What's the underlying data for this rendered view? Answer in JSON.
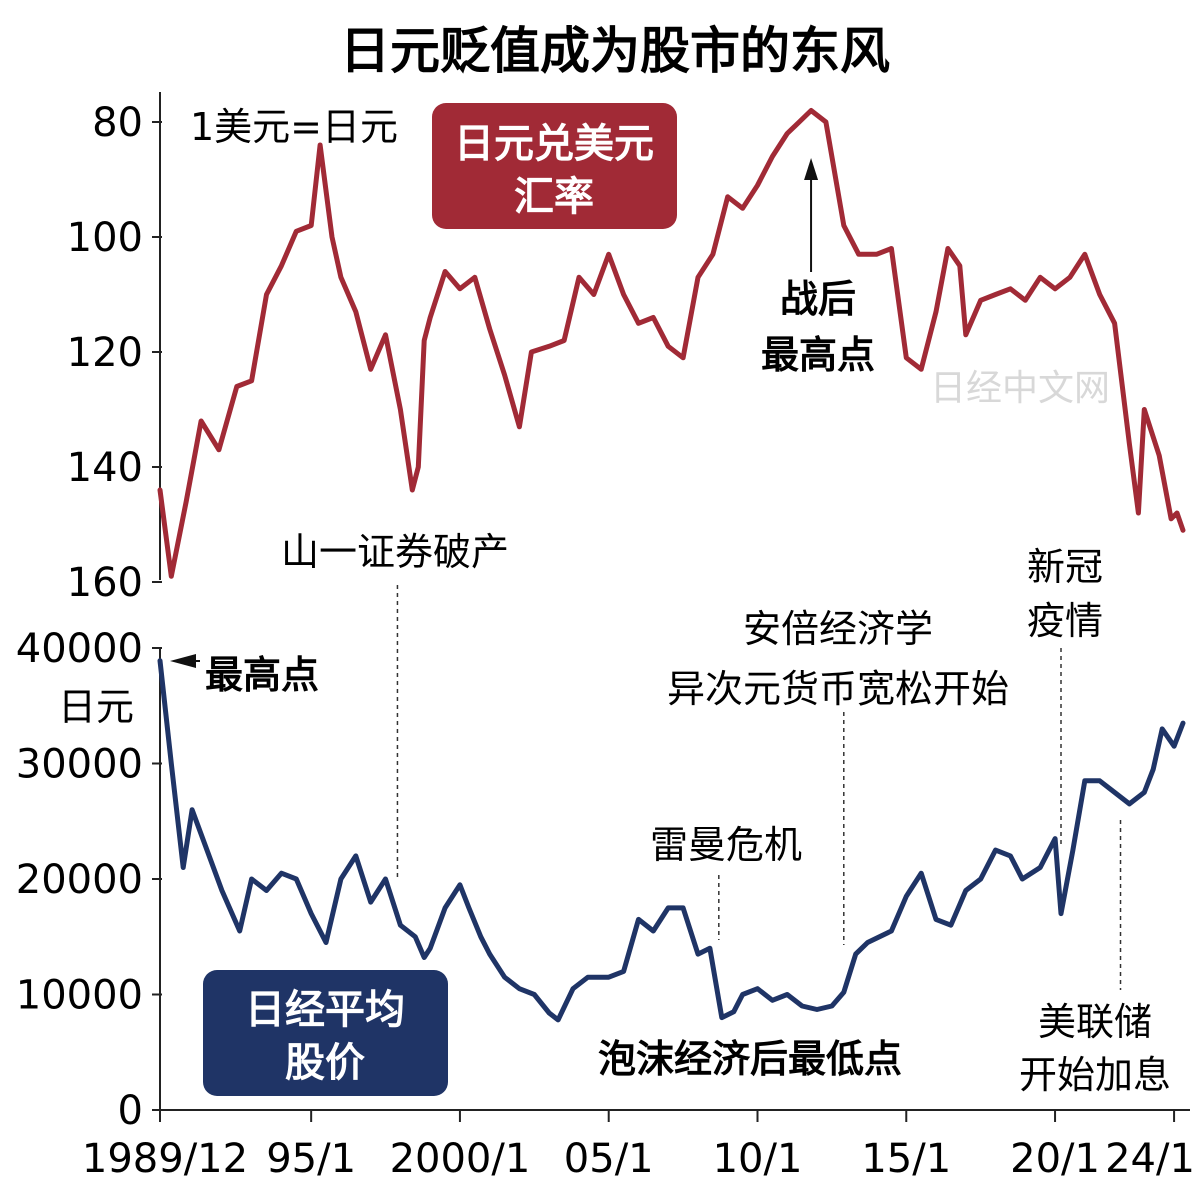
{
  "chart_data": {
    "title": "日元贬值成为股市的东风",
    "x_ticks": [
      "1989/12",
      "95/1",
      "2000/1",
      "05/1",
      "10/1",
      "15/1",
      "20/1",
      "24/1"
    ],
    "watermark": "日经中文网",
    "fx": {
      "type": "line",
      "name": "日元兑美元汇率",
      "name_lines": [
        "日元兑美元",
        "汇率"
      ],
      "unit_label": "1美元=日元",
      "inverted": true,
      "ylim": [
        160,
        77
      ],
      "y_ticks": [
        "80",
        "100",
        "120",
        "140",
        "160"
      ],
      "color": "#a12a36",
      "x": [
        1989.92,
        1990.3,
        1990.8,
        1991.3,
        1991.9,
        1992.5,
        1993.0,
        1993.5,
        1994.0,
        1994.5,
        1995.0,
        1995.3,
        1995.7,
        1996.0,
        1996.5,
        1997.0,
        1997.5,
        1998.0,
        1998.4,
        1998.6,
        1998.8,
        1999.0,
        1999.5,
        2000.0,
        2000.5,
        2001.0,
        2001.5,
        2002.0,
        2002.4,
        2003.0,
        2003.5,
        2004.0,
        2004.5,
        2005.0,
        2005.5,
        2006.0,
        2006.5,
        2007.0,
        2007.5,
        2008.0,
        2008.5,
        2009.0,
        2009.5,
        2010.0,
        2010.5,
        2011.0,
        2011.4,
        2011.8,
        2012.3,
        2012.9,
        2013.4,
        2014.0,
        2014.5,
        2015.0,
        2015.5,
        2016.0,
        2016.4,
        2016.8,
        2017.0,
        2017.5,
        2018.0,
        2018.5,
        2019.0,
        2019.5,
        2020.0,
        2020.5,
        2021.0,
        2021.5,
        2022.0,
        2022.5,
        2022.8,
        2023.0,
        2023.5,
        2023.9,
        2024.1,
        2024.3
      ],
      "values": [
        144,
        159,
        146,
        132,
        137,
        126,
        125,
        110,
        105,
        99,
        98,
        84,
        100,
        107,
        113,
        123,
        117,
        130,
        144,
        140,
        118,
        114,
        106,
        109,
        107,
        116,
        124,
        133,
        120,
        119,
        118,
        107,
        110,
        103,
        110,
        115,
        114,
        119,
        121,
        107,
        103,
        93,
        95,
        91,
        86,
        82,
        80,
        78,
        80,
        98,
        103,
        103,
        102,
        121,
        123,
        113,
        102,
        105,
        117,
        111,
        110,
        109,
        111,
        107,
        109,
        107,
        103,
        110,
        115,
        136,
        148,
        130,
        138,
        149,
        148,
        151
      ]
    },
    "nikkei": {
      "type": "line",
      "name": "日经平均股价",
      "name_lines": [
        "日经平均",
        "股价"
      ],
      "unit_label": "日元",
      "ylim": [
        0,
        40000
      ],
      "y_ticks": [
        "40000",
        "30000",
        "20000",
        "10000",
        "0"
      ],
      "color": "#1f3466",
      "x": [
        1989.92,
        1990.3,
        1990.7,
        1991.0,
        1991.5,
        1992.0,
        1992.6,
        1993.0,
        1993.5,
        1994.0,
        1994.5,
        1995.0,
        1995.5,
        1996.0,
        1996.5,
        1997.0,
        1997.5,
        1998.0,
        1998.5,
        1998.8,
        1999.0,
        1999.5,
        2000.0,
        2000.3,
        2000.7,
        2001.0,
        2001.5,
        2002.0,
        2002.5,
        2003.0,
        2003.3,
        2003.8,
        2004.3,
        2005.0,
        2005.5,
        2006.0,
        2006.5,
        2007.0,
        2007.5,
        2008.0,
        2008.4,
        2008.8,
        2009.2,
        2009.5,
        2010.0,
        2010.5,
        2011.0,
        2011.5,
        2012.0,
        2012.5,
        2012.9,
        2013.3,
        2013.7,
        2014.5,
        2015.0,
        2015.5,
        2016.0,
        2016.5,
        2017.0,
        2017.5,
        2018.0,
        2018.5,
        2018.9,
        2019.5,
        2020.0,
        2020.2,
        2020.6,
        2021.0,
        2021.5,
        2022.0,
        2022.5,
        2023.0,
        2023.3,
        2023.6,
        2024.0,
        2024.3
      ],
      "values": [
        38900,
        30000,
        21000,
        26000,
        22500,
        19000,
        15500,
        20000,
        19000,
        20500,
        20000,
        17000,
        14500,
        20000,
        22000,
        18000,
        20000,
        16000,
        15000,
        13200,
        14000,
        17500,
        19500,
        17500,
        15000,
        13500,
        11500,
        10500,
        10000,
        8400,
        7800,
        10500,
        11500,
        11500,
        12000,
        16500,
        15500,
        17500,
        17500,
        13500,
        14000,
        8000,
        8500,
        10000,
        10500,
        9500,
        10000,
        9000,
        8700,
        9000,
        10200,
        13500,
        14500,
        15500,
        18500,
        20500,
        16500,
        16000,
        19000,
        20000,
        22500,
        22000,
        20000,
        21000,
        23500,
        17000,
        22500,
        28500,
        28500,
        27500,
        26500,
        27500,
        29500,
        33000,
        31500,
        33500
      ]
    },
    "annotations": {
      "yamaichi": "山一证券破产",
      "postwar_high": [
        "战后",
        "最高点"
      ],
      "covid": [
        "新冠",
        "疫情"
      ],
      "abenomics": [
        "安倍经济学",
        "异次元货币宽松开始"
      ],
      "nikkei_peak": "最高点",
      "lehman": "雷曼危机",
      "bubble_low": "泡沫经济后最低点",
      "fed_hike": [
        "美联储",
        "开始加息"
      ]
    }
  }
}
